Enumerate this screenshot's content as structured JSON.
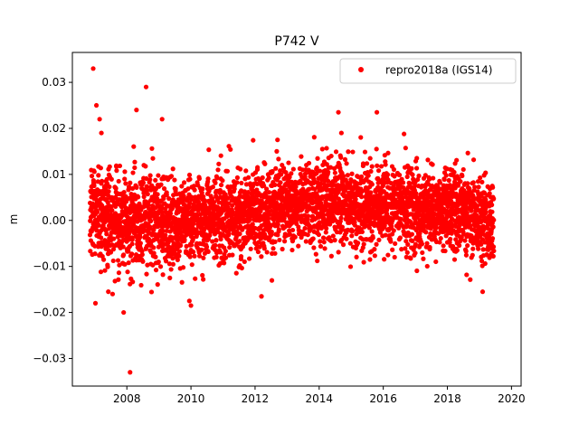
{
  "chart_data": {
    "type": "scatter",
    "title": "P742 V",
    "xlabel": "",
    "ylabel": "m",
    "xlim": [
      2006.3,
      2020.3
    ],
    "ylim": [
      -0.036,
      0.0365
    ],
    "xticks": [
      2008,
      2010,
      2012,
      2014,
      2016,
      2018,
      2020
    ],
    "yticks": [
      -0.03,
      -0.02,
      -0.01,
      0.0,
      0.01,
      0.02,
      0.03
    ],
    "ytick_labels": [
      "−0.03",
      "−0.02",
      "−0.01",
      "0.00",
      "0.01",
      "0.02",
      "0.03"
    ],
    "legend_position": "upper right",
    "grid": false,
    "series": [
      {
        "name": "repro2018a (IGS14)",
        "color": "#ff0000",
        "marker": "circle",
        "data_range": [
          2006.85,
          2019.45
        ],
        "trend": [
          {
            "x": 2006.85,
            "y": 0.002
          },
          {
            "x": 2008.0,
            "y": 0.0
          },
          {
            "x": 2010.0,
            "y": 0.0
          },
          {
            "x": 2012.0,
            "y": 0.001
          },
          {
            "x": 2013.0,
            "y": 0.003
          },
          {
            "x": 2014.5,
            "y": 0.004
          },
          {
            "x": 2016.0,
            "y": 0.003
          },
          {
            "x": 2017.0,
            "y": 0.002
          },
          {
            "x": 2018.5,
            "y": 0.002
          },
          {
            "x": 2019.45,
            "y": -0.002
          }
        ],
        "noise_sd": 0.0045,
        "outliers": [
          {
            "x": 2006.95,
            "y": 0.033
          },
          {
            "x": 2007.05,
            "y": 0.025
          },
          {
            "x": 2007.15,
            "y": 0.022
          },
          {
            "x": 2007.02,
            "y": -0.018
          },
          {
            "x": 2008.1,
            "y": -0.033
          },
          {
            "x": 2008.6,
            "y": 0.029
          },
          {
            "x": 2008.3,
            "y": 0.024
          },
          {
            "x": 2009.1,
            "y": 0.022
          },
          {
            "x": 2007.9,
            "y": -0.02
          },
          {
            "x": 2009.95,
            "y": -0.0175
          },
          {
            "x": 2010.0,
            "y": -0.0185
          },
          {
            "x": 2012.2,
            "y": -0.0165
          },
          {
            "x": 2014.6,
            "y": 0.0235
          },
          {
            "x": 2015.8,
            "y": 0.0235
          },
          {
            "x": 2019.1,
            "y": -0.0155
          },
          {
            "x": 2012.7,
            "y": 0.0175
          },
          {
            "x": 2014.1,
            "y": 0.0155
          }
        ],
        "n_points": 3900,
        "seed": 742
      }
    ]
  }
}
